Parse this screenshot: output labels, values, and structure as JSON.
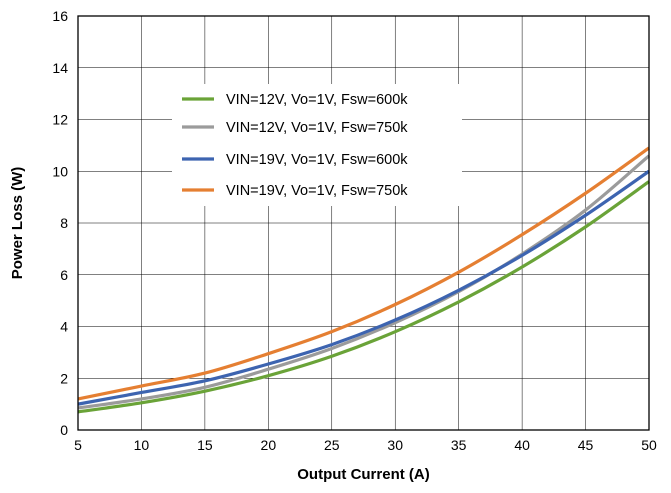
{
  "chart_data": {
    "type": "line",
    "xlabel": "Output Current (A)",
    "ylabel": "Power Loss (W)",
    "xlim": [
      5,
      50
    ],
    "ylim": [
      0,
      16
    ],
    "x_ticks": [
      5,
      10,
      15,
      20,
      25,
      30,
      35,
      40,
      45,
      50
    ],
    "y_ticks": [
      0,
      2,
      4,
      6,
      8,
      10,
      12,
      14,
      16
    ],
    "grid": true,
    "legend_position": "upper-left-center",
    "x": [
      5,
      10,
      15,
      20,
      25,
      30,
      35,
      40,
      45,
      50
    ],
    "series": [
      {
        "name": "VIN=12V, Vo=1V, Fsw=600k",
        "color": "#6aa338",
        "values": [
          0.7,
          1.05,
          1.5,
          2.1,
          2.85,
          3.8,
          4.95,
          6.3,
          7.85,
          9.6
        ]
      },
      {
        "name": "VIN=12V, Vo=1V, Fsw=750k",
        "color": "#9b9b9b",
        "values": [
          0.85,
          1.2,
          1.65,
          2.35,
          3.15,
          4.15,
          5.35,
          6.8,
          8.5,
          10.6
        ]
      },
      {
        "name": "VIN=19V, Vo=1V, Fsw=600k",
        "color": "#3d64b0",
        "values": [
          1.0,
          1.45,
          1.9,
          2.55,
          3.3,
          4.25,
          5.4,
          6.75,
          8.3,
          10.0
        ]
      },
      {
        "name": "VIN=19V, Vo=1V, Fsw=750k",
        "color": "#e57f32",
        "values": [
          1.2,
          1.7,
          2.2,
          2.95,
          3.8,
          4.85,
          6.1,
          7.55,
          9.15,
          10.9
        ]
      }
    ]
  }
}
